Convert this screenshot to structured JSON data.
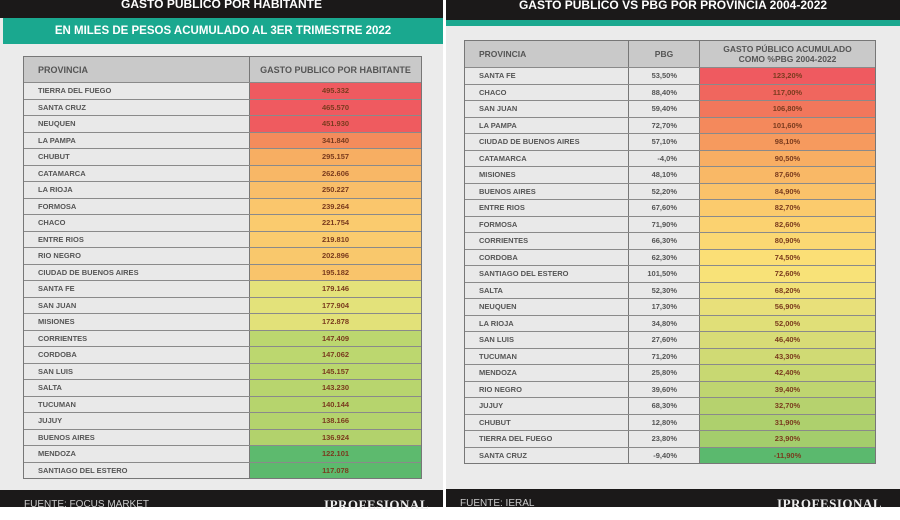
{
  "left": {
    "title": "GASTO PUBLICO POR HABITANTE",
    "subtitle": "EN MILES DE PESOS ACUMULADO AL 3ER TRIMESTRE 2022",
    "headers": [
      "PROVINCIA",
      "GASTO PUBLICO POR HABITANTE"
    ],
    "rows": [
      {
        "provincia": "TIERRA DEL FUEGO",
        "valor": "495.332",
        "color": "#ef5a60"
      },
      {
        "provincia": "SANTA CRUZ",
        "valor": "465.570",
        "color": "#ef5a60"
      },
      {
        "provincia": "NEUQUEN",
        "valor": "451.930",
        "color": "#ef5b5f"
      },
      {
        "provincia": "LA PAMPA",
        "valor": "341.840",
        "color": "#f38c5c"
      },
      {
        "provincia": "CHUBUT",
        "valor": "295.157",
        "color": "#f7ae62"
      },
      {
        "provincia": "CATAMARCA",
        "valor": "262.606",
        "color": "#f8b766"
      },
      {
        "provincia": "LA RIOJA",
        "valor": "250.227",
        "color": "#f9be69"
      },
      {
        "provincia": "FORMOSA",
        "valor": "239.264",
        "color": "#fac66c"
      },
      {
        "provincia": "CHACO",
        "valor": "221.754",
        "color": "#facb6e"
      },
      {
        "provincia": "ENTRE RIOS",
        "valor": "219.810",
        "color": "#facb6e"
      },
      {
        "provincia": "RIO NEGRO",
        "valor": "202.896",
        "color": "#f9c86c"
      },
      {
        "provincia": "CIUDAD DE BUENOS AIRES",
        "valor": "195.182",
        "color": "#f9c46b"
      },
      {
        "provincia": "SANTA FE",
        "valor": "179.146",
        "color": "#e4e27a"
      },
      {
        "provincia": "SAN JUAN",
        "valor": "177.904",
        "color": "#e3e27a"
      },
      {
        "provincia": "MISIONES",
        "valor": "172.878",
        "color": "#e2e179"
      },
      {
        "provincia": "CORRIENTES",
        "valor": "147.409",
        "color": "#bcd76f"
      },
      {
        "provincia": "CORDOBA",
        "valor": "147.062",
        "color": "#bcd76f"
      },
      {
        "provincia": "SAN LUIS",
        "valor": "145.157",
        "color": "#bad66e"
      },
      {
        "provincia": "SALTA",
        "valor": "143.230",
        "color": "#b8d56e"
      },
      {
        "provincia": "TUCUMAN",
        "valor": "140.144",
        "color": "#b6d46d"
      },
      {
        "provincia": "JUJUY",
        "valor": "138.166",
        "color": "#b4d36d"
      },
      {
        "provincia": "BUENOS AIRES",
        "valor": "136.924",
        "color": "#b2d26c"
      },
      {
        "provincia": "MENDOZA",
        "valor": "122.101",
        "color": "#5dba6e"
      },
      {
        "provincia": "SANTIAGO DEL ESTERO",
        "valor": "117.078",
        "color": "#5cb96d"
      }
    ],
    "source": "FUENTE: FOCUS MARKET",
    "brand": "IPROFESIONAL"
  },
  "right": {
    "title": "GASTO PÚBLICO VS PBG POR PROVINCIA 2004-2022",
    "headers": [
      "PROVINCIA",
      "PBG",
      "GASTO PÚBLICO ACUMULADO",
      "COMO %PBG 2004-2022"
    ],
    "rows": [
      {
        "provincia": "SANTA FE",
        "pbg": "53,50%",
        "valor": "123,20%",
        "color": "#ef5a60"
      },
      {
        "provincia": "CHACO",
        "pbg": "88,40%",
        "valor": "117,00%",
        "color": "#f0665e"
      },
      {
        "provincia": "SAN JUAN",
        "pbg": "59,40%",
        "valor": "106,80%",
        "color": "#f2775c"
      },
      {
        "provincia": "LA PAMPA",
        "pbg": "72,70%",
        "valor": "101,60%",
        "color": "#f4895c"
      },
      {
        "provincia": "CIUDAD DE BUENOS AIRES",
        "pbg": "57,10%",
        "valor": "98,10%",
        "color": "#f69a5e"
      },
      {
        "provincia": "CATAMARCA",
        "pbg": "-4,0%",
        "valor": "90,50%",
        "color": "#f8ae63"
      },
      {
        "provincia": "MISIONES",
        "pbg": "48,10%",
        "valor": "87,60%",
        "color": "#f9b866"
      },
      {
        "provincia": "BUENOS AIRES",
        "pbg": "52,20%",
        "valor": "84,90%",
        "color": "#fac26a"
      },
      {
        "provincia": "ENTRE RIOS",
        "pbg": "67,60%",
        "valor": "82,70%",
        "color": "#fbcb6d"
      },
      {
        "provincia": "FORMOSA",
        "pbg": "71,90%",
        "valor": "82,60%",
        "color": "#fbd270"
      },
      {
        "provincia": "CORRIENTES",
        "pbg": "66,30%",
        "valor": "80,90%",
        "color": "#fbd873"
      },
      {
        "provincia": "CORDOBA",
        "pbg": "62,30%",
        "valor": "74,50%",
        "color": "#fbdf76"
      },
      {
        "provincia": "SANTIAGO DEL ESTERO",
        "pbg": "101,50%",
        "valor": "72,60%",
        "color": "#f8e278"
      },
      {
        "provincia": "SALTA",
        "pbg": "52,30%",
        "valor": "68,20%",
        "color": "#f1e279"
      },
      {
        "provincia": "NEUQUEN",
        "pbg": "17,30%",
        "valor": "56,90%",
        "color": "#e8e07a"
      },
      {
        "provincia": "LA RIOJA",
        "pbg": "34,80%",
        "valor": "52,00%",
        "color": "#e0df78"
      },
      {
        "provincia": "SAN LUIS",
        "pbg": "27,60%",
        "valor": "46,40%",
        "color": "#d8dc76"
      },
      {
        "provincia": "TUCUMAN",
        "pbg": "71,20%",
        "valor": "43,30%",
        "color": "#d0da74"
      },
      {
        "provincia": "MENDOZA",
        "pbg": "25,80%",
        "valor": "42,40%",
        "color": "#c8d872"
      },
      {
        "provincia": "RIO NEGRO",
        "pbg": "39,60%",
        "valor": "39,40%",
        "color": "#bfd570"
      },
      {
        "provincia": "JUJUY",
        "pbg": "68,30%",
        "valor": "32,70%",
        "color": "#b6d26e"
      },
      {
        "provincia": "CHUBUT",
        "pbg": "12,80%",
        "valor": "31,90%",
        "color": "#aed06d"
      },
      {
        "provincia": "TIERRA DEL FUEGO",
        "pbg": "23,80%",
        "valor": "23,90%",
        "color": "#a4cd6c"
      },
      {
        "provincia": "SANTA CRUZ",
        "pbg": "-9,40%",
        "valor": "-11,90%",
        "color": "#5bb96e"
      }
    ],
    "source": "FUENTE: IERAL",
    "brand": "IPROFESIONAL"
  }
}
